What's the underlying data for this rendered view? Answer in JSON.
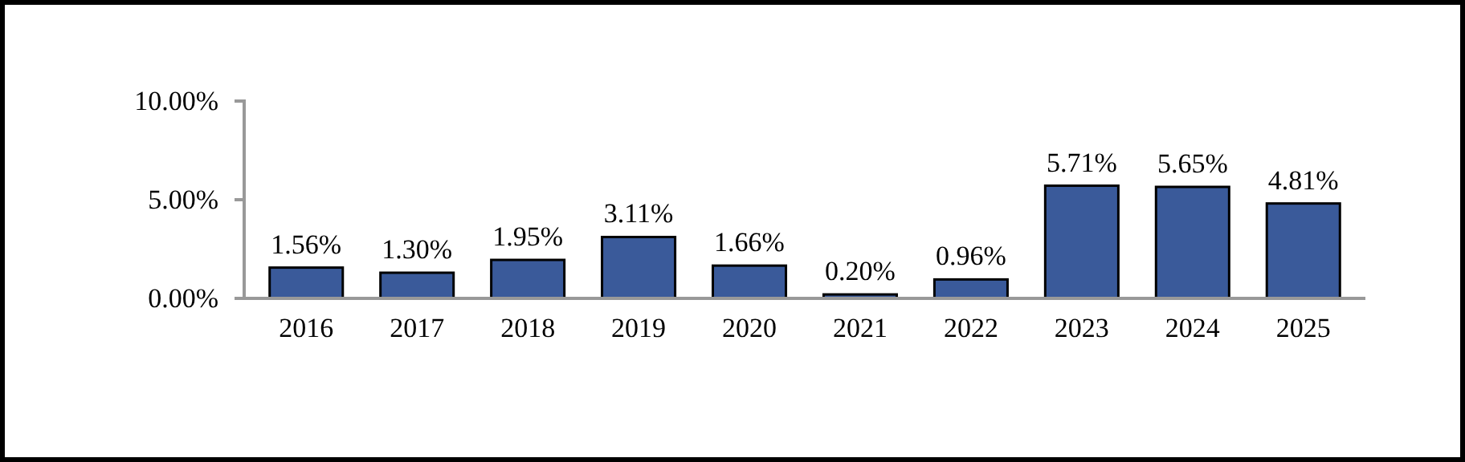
{
  "chart_data": {
    "type": "bar",
    "categories": [
      "2016",
      "2017",
      "2018",
      "2019",
      "2020",
      "2021",
      "2022",
      "2023",
      "2024",
      "2025"
    ],
    "values": [
      1.56,
      1.3,
      1.95,
      3.11,
      1.66,
      0.2,
      0.96,
      5.71,
      5.65,
      4.81
    ],
    "value_labels": [
      "1.56%",
      "1.30%",
      "1.95%",
      "3.11%",
      "1.66%",
      "0.20%",
      "0.96%",
      "5.71%",
      "5.65%",
      "4.81%"
    ],
    "color": "#3a5a9a",
    "ylim": [
      0,
      10
    ],
    "yticks": [
      {
        "value": 0,
        "label": "0.00%"
      },
      {
        "value": 5,
        "label": "5.00%"
      },
      {
        "value": 10,
        "label": "10.00%"
      }
    ],
    "grid": false
  }
}
